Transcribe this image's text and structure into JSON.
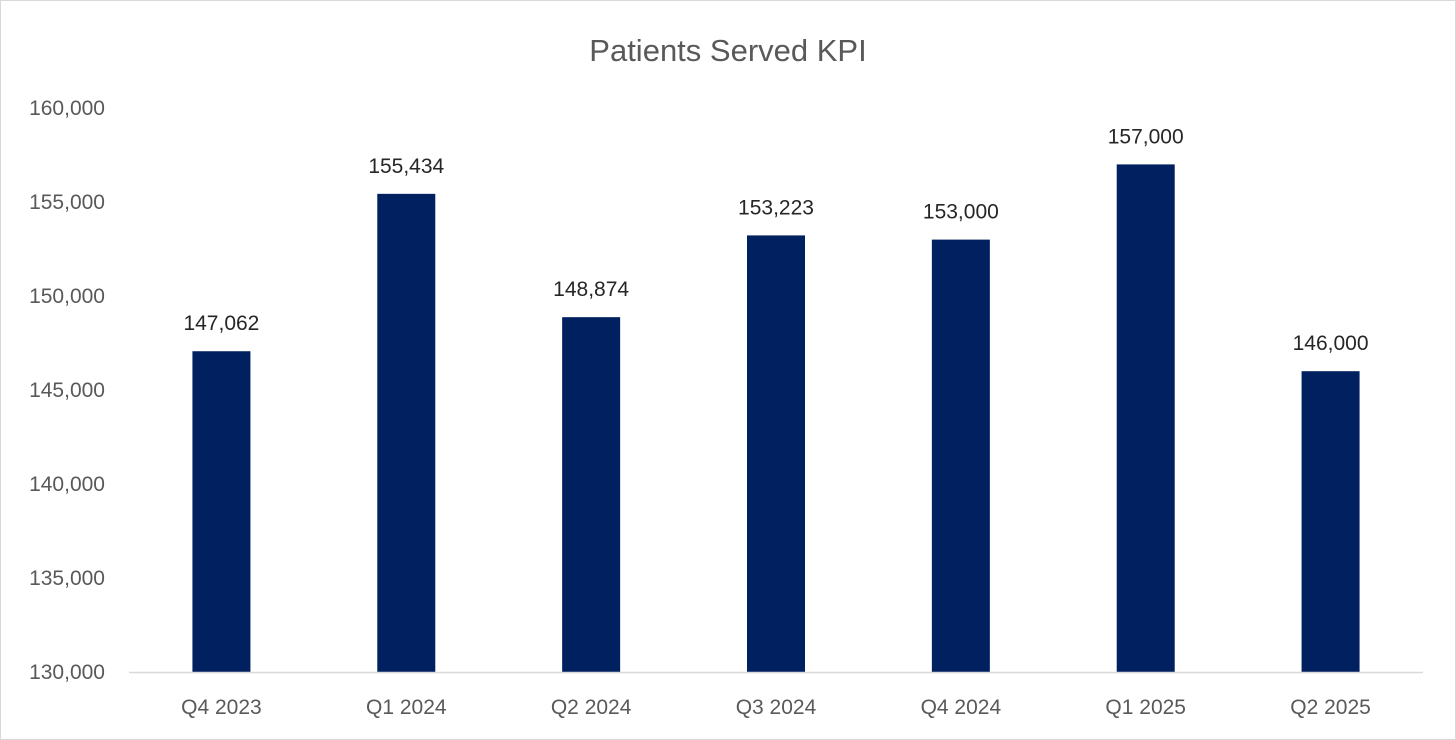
{
  "chart_data": {
    "type": "bar",
    "title": "Patients Served KPI",
    "xlabel": "",
    "ylabel": "",
    "categories": [
      "Q4 2023",
      "Q1 2024",
      "Q2 2024",
      "Q3 2024",
      "Q4 2024",
      "Q1 2025",
      "Q2 2025"
    ],
    "values": [
      147062,
      155434,
      148874,
      153223,
      153000,
      157000,
      146000
    ],
    "data_labels": [
      "147,062",
      "155,434",
      "148,874",
      "153,223",
      "153,000",
      "157,000",
      "146,000"
    ],
    "ylim": [
      130000,
      160000
    ],
    "yticks": [
      130000,
      135000,
      140000,
      145000,
      150000,
      155000,
      160000
    ],
    "ytick_labels": [
      "130,000",
      "135,000",
      "140,000",
      "145,000",
      "150,000",
      "155,000",
      "160,000"
    ],
    "grid": false,
    "legend": "none",
    "colors": {
      "bar": "#002060",
      "axis_line": "#d9d9d9",
      "title": "#595959",
      "tick_label": "#595959",
      "data_label": "#262626"
    }
  }
}
